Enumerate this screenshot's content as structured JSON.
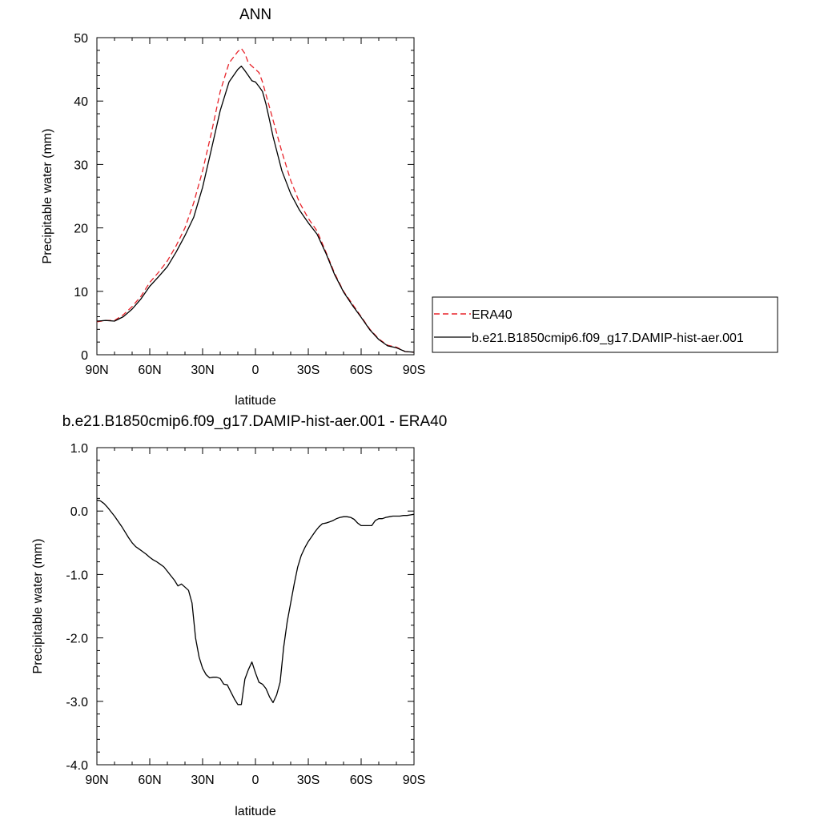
{
  "chart_data": [
    {
      "type": "line",
      "title": "ANN",
      "xlabel": "latitude",
      "ylabel": "Precipitable water (mm)",
      "xlim": [
        90,
        -90
      ],
      "ylim": [
        0,
        50
      ],
      "xticks": [
        {
          "value": 90,
          "label": "90N"
        },
        {
          "value": 60,
          "label": "60N"
        },
        {
          "value": 30,
          "label": "30N"
        },
        {
          "value": 0,
          "label": "0"
        },
        {
          "value": -30,
          "label": "30S"
        },
        {
          "value": -60,
          "label": "60S"
        },
        {
          "value": -90,
          "label": "90S"
        }
      ],
      "yticks": [
        {
          "value": 0,
          "label": "0"
        },
        {
          "value": 10,
          "label": "10"
        },
        {
          "value": 20,
          "label": "20"
        },
        {
          "value": 30,
          "label": "30"
        },
        {
          "value": 40,
          "label": "40"
        },
        {
          "value": 50,
          "label": "50"
        }
      ],
      "legend_position": "right",
      "series": [
        {
          "name": "ERA40",
          "color": "#e8232a",
          "dash": true,
          "x": [
            90,
            85,
            80,
            75,
            70,
            65,
            60,
            55,
            50,
            45,
            40,
            35,
            30,
            25,
            20,
            15,
            10,
            8,
            6,
            4,
            2,
            0,
            -2,
            -4,
            -6,
            -8,
            -10,
            -15,
            -20,
            -25,
            -30,
            -35,
            -40,
            -45,
            -50,
            -55,
            -60,
            -65,
            -70,
            -75,
            -80,
            -85,
            -90
          ],
          "y": [
            5.2,
            5.4,
            5.4,
            6.3,
            7.6,
            9.2,
            11.4,
            13.0,
            14.8,
            17.2,
            20.0,
            24.0,
            29.0,
            35.0,
            41.5,
            46.0,
            47.8,
            48.3,
            47.5,
            46.0,
            45.5,
            45.0,
            44.5,
            43.0,
            41.0,
            39.0,
            37.0,
            32.0,
            27.5,
            24.0,
            21.5,
            19.5,
            16.2,
            12.8,
            10.0,
            8.0,
            6.0,
            4.0,
            2.5,
            1.5,
            1.2,
            0.5,
            0.4
          ]
        },
        {
          "name": "b.e21.B1850cmip6.f09_g17.DAMIP-hist-aer.001",
          "color": "#000000",
          "dash": false,
          "x": [
            90,
            85,
            80,
            75,
            70,
            65,
            60,
            55,
            50,
            45,
            40,
            35,
            30,
            25,
            20,
            15,
            10,
            8,
            6,
            4,
            2,
            0,
            -2,
            -4,
            -6,
            -8,
            -10,
            -15,
            -20,
            -25,
            -30,
            -35,
            -40,
            -45,
            -50,
            -55,
            -60,
            -65,
            -70,
            -75,
            -80,
            -85,
            -90
          ],
          "y": [
            5.3,
            5.4,
            5.3,
            6.0,
            7.2,
            8.8,
            10.8,
            12.3,
            13.9,
            16.2,
            18.8,
            21.7,
            26.4,
            32.4,
            38.5,
            43.0,
            45.0,
            45.5,
            44.8,
            44.0,
            43.2,
            43.0,
            42.3,
            41.5,
            39.5,
            37.0,
            34.4,
            29.0,
            25.4,
            22.8,
            20.8,
            19.0,
            16.0,
            12.6,
            9.9,
            7.8,
            5.9,
            3.9,
            2.4,
            1.4,
            1.1,
            0.5,
            0.4
          ]
        }
      ]
    },
    {
      "type": "line",
      "title": "b.e21.B1850cmip6.f09_g17.DAMIP-hist-aer.001 - ERA40",
      "xlabel": "latitude",
      "ylabel": "Precipitable water (mm)",
      "xlim": [
        90,
        -90
      ],
      "ylim": [
        -4,
        1
      ],
      "xticks": [
        {
          "value": 90,
          "label": "90N"
        },
        {
          "value": 60,
          "label": "60N"
        },
        {
          "value": 30,
          "label": "30N"
        },
        {
          "value": 0,
          "label": "0"
        },
        {
          "value": -30,
          "label": "30S"
        },
        {
          "value": -60,
          "label": "60S"
        },
        {
          "value": -90,
          "label": "90S"
        }
      ],
      "yticks": [
        {
          "value": 1,
          "label": "1.0"
        },
        {
          "value": 0,
          "label": "0.0"
        },
        {
          "value": -1,
          "label": "-1.0"
        },
        {
          "value": -2,
          "label": "-2.0"
        },
        {
          "value": -3,
          "label": "-3.0"
        },
        {
          "value": -4,
          "label": "-4.0"
        }
      ],
      "series": [
        {
          "color": "#000000",
          "dash": false,
          "x": [
            90,
            88,
            86,
            84,
            82,
            80,
            78,
            76,
            74,
            72,
            70,
            68,
            66,
            64,
            62,
            60,
            58,
            56,
            54,
            52,
            50,
            48,
            46,
            44,
            42,
            40,
            38,
            36,
            34,
            32,
            30,
            28,
            26,
            24,
            22,
            20,
            18,
            16,
            14,
            12,
            10,
            8,
            6,
            4,
            2,
            0,
            -2,
            -4,
            -6,
            -8,
            -10,
            -12,
            -14,
            -16,
            -18,
            -20,
            -22,
            -24,
            -26,
            -28,
            -30,
            -32,
            -34,
            -36,
            -38,
            -40,
            -42,
            -44,
            -46,
            -48,
            -50,
            -52,
            -54,
            -56,
            -58,
            -60,
            -62,
            -64,
            -66,
            -68,
            -70,
            -72,
            -74,
            -76,
            -78,
            -80,
            -82,
            -84,
            -86,
            -88,
            -90
          ],
          "y": [
            0.17,
            0.16,
            0.12,
            0.06,
            -0.01,
            -0.08,
            -0.16,
            -0.24,
            -0.33,
            -0.42,
            -0.5,
            -0.56,
            -0.6,
            -0.64,
            -0.68,
            -0.73,
            -0.77,
            -0.8,
            -0.84,
            -0.88,
            -0.95,
            -1.02,
            -1.09,
            -1.18,
            -1.15,
            -1.2,
            -1.25,
            -1.45,
            -2.0,
            -2.3,
            -2.48,
            -2.58,
            -2.63,
            -2.62,
            -2.62,
            -2.64,
            -2.73,
            -2.74,
            -2.85,
            -2.96,
            -3.05,
            -3.05,
            -2.65,
            -2.5,
            -2.38,
            -2.55,
            -2.7,
            -2.73,
            -2.8,
            -2.93,
            -3.02,
            -2.9,
            -2.7,
            -2.15,
            -1.75,
            -1.45,
            -1.15,
            -0.88,
            -0.7,
            -0.58,
            -0.48,
            -0.4,
            -0.32,
            -0.25,
            -0.2,
            -0.19,
            -0.17,
            -0.15,
            -0.12,
            -0.1,
            -0.09,
            -0.09,
            -0.1,
            -0.13,
            -0.19,
            -0.23,
            -0.23,
            -0.23,
            -0.23,
            -0.15,
            -0.12,
            -0.12,
            -0.1,
            -0.09,
            -0.08,
            -0.08,
            -0.08,
            -0.07,
            -0.07,
            -0.06,
            -0.05
          ]
        }
      ]
    }
  ]
}
